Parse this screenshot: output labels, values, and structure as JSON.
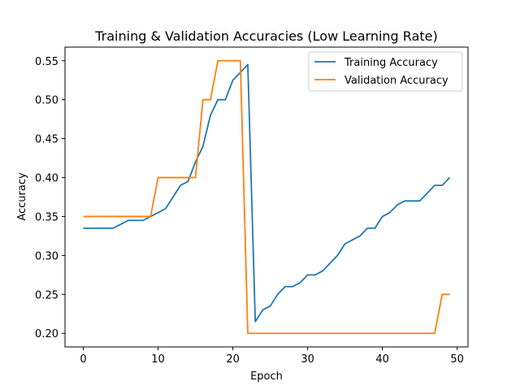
{
  "chart_data": {
    "type": "line",
    "title": "Training & Validation Accuracies (Low Learning Rate)",
    "xlabel": "Epoch",
    "ylabel": "Accuracy",
    "xlim": [
      -2.45,
      51.45
    ],
    "ylim": [
      0.1825,
      0.5675
    ],
    "xticks": [
      0,
      10,
      20,
      30,
      40,
      50
    ],
    "yticks": [
      0.2,
      0.25,
      0.3,
      0.35,
      0.4,
      0.45,
      0.5,
      0.55
    ],
    "grid": false,
    "legend_position": "upper right",
    "x": [
      0,
      1,
      2,
      3,
      4,
      5,
      6,
      7,
      8,
      9,
      10,
      11,
      12,
      13,
      14,
      15,
      16,
      17,
      18,
      19,
      20,
      21,
      22,
      23,
      24,
      25,
      26,
      27,
      28,
      29,
      30,
      31,
      32,
      33,
      34,
      35,
      36,
      37,
      38,
      39,
      40,
      41,
      42,
      43,
      44,
      45,
      46,
      47,
      48,
      49
    ],
    "series": [
      {
        "name": "Training Accuracy",
        "color": "#1f77b4",
        "values": [
          0.335,
          0.335,
          0.335,
          0.335,
          0.335,
          0.34,
          0.345,
          0.345,
          0.345,
          0.35,
          0.355,
          0.36,
          0.375,
          0.39,
          0.395,
          0.42,
          0.44,
          0.48,
          0.5,
          0.5,
          0.525,
          0.535,
          0.545,
          0.215,
          0.23,
          0.235,
          0.25,
          0.26,
          0.26,
          0.265,
          0.275,
          0.275,
          0.28,
          0.29,
          0.3,
          0.315,
          0.32,
          0.325,
          0.335,
          0.335,
          0.35,
          0.355,
          0.365,
          0.37,
          0.37,
          0.37,
          0.38,
          0.39,
          0.39,
          0.4
        ]
      },
      {
        "name": "Validation Accuracy",
        "color": "#ff7f0e",
        "values": [
          0.35,
          0.35,
          0.35,
          0.35,
          0.35,
          0.35,
          0.35,
          0.35,
          0.35,
          0.35,
          0.4,
          0.4,
          0.4,
          0.4,
          0.4,
          0.4,
          0.5,
          0.5,
          0.55,
          0.55,
          0.55,
          0.55,
          0.2,
          0.2,
          0.2,
          0.2,
          0.2,
          0.2,
          0.2,
          0.2,
          0.2,
          0.2,
          0.2,
          0.2,
          0.2,
          0.2,
          0.2,
          0.2,
          0.2,
          0.2,
          0.2,
          0.2,
          0.2,
          0.2,
          0.2,
          0.2,
          0.2,
          0.2,
          0.25,
          0.25
        ]
      }
    ]
  }
}
